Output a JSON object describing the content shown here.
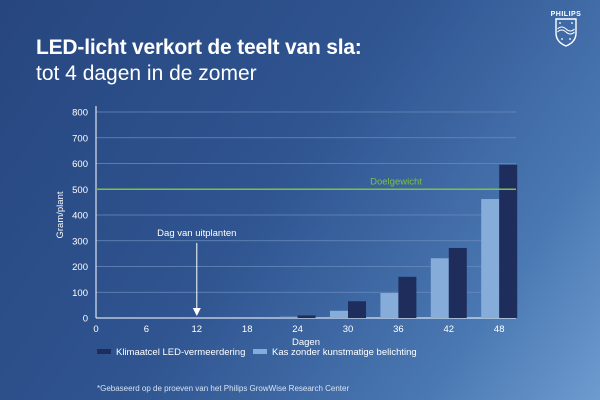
{
  "header": {
    "title_line1": "LED-licht verkort de teelt van sla:",
    "title_line2": "tot 4 dagen in de zomer"
  },
  "logo": {
    "text": "PHILIPS",
    "icon": "philips-shield-icon"
  },
  "footnote": "*Gebaseerd op de proeven van het Philips GrowWise Research Center",
  "colors": {
    "series_dark": "#1e2d5c",
    "series_light": "#86acd9",
    "target_line": "#7cc242",
    "grid": "#6a8bbd",
    "text": "#ffffff"
  },
  "chart_data": {
    "type": "bar",
    "xlabel": "Dagen",
    "ylabel": "Gram/plant",
    "ylim": [
      0,
      800
    ],
    "yticks": [
      0,
      100,
      200,
      300,
      400,
      500,
      600,
      700,
      800
    ],
    "xlim": [
      0,
      50
    ],
    "xticks": [
      0,
      6,
      12,
      18,
      24,
      30,
      36,
      42,
      48
    ],
    "grid": true,
    "legend_position": "bottom",
    "series": [
      {
        "name": "Klimaatcel LED-vermeerdering",
        "color": "#1e2d5c",
        "x": [
          24,
          30,
          36,
          42,
          48
        ],
        "values": [
          10,
          65,
          160,
          272,
          595
        ]
      },
      {
        "name": "Kas zonder kunstmatige belichting",
        "color": "#86acd9",
        "x": [
          24,
          30,
          36,
          42,
          48
        ],
        "values": [
          5,
          28,
          97,
          232,
          462
        ]
      }
    ],
    "reference_line": {
      "label": "Doelgewicht",
      "value": 500
    },
    "annotation": {
      "label": "Dag van uitplanten",
      "x": 12
    }
  }
}
